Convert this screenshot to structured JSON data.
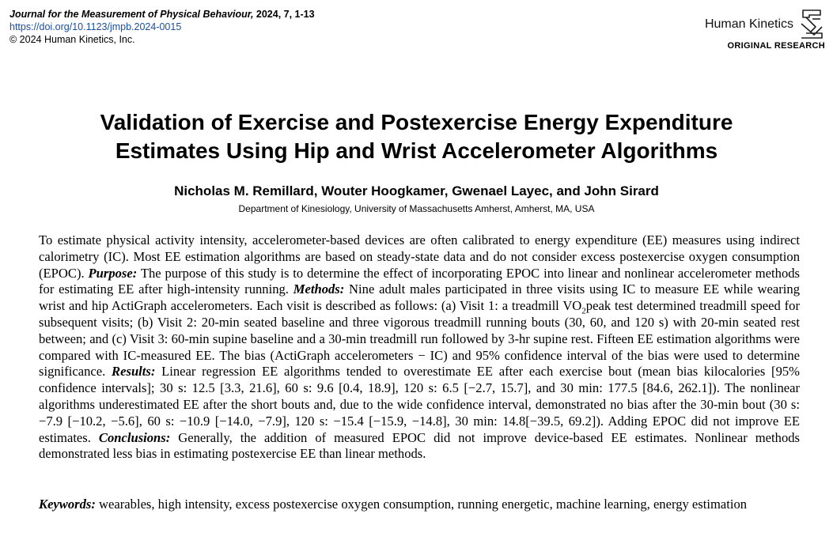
{
  "header": {
    "journal_name": "Journal for the Measurement of Physical Behaviour,",
    "journal_volume": " 2024, 7, 1-13",
    "doi": "https://doi.org/10.1123/jmpb.2024-0015",
    "copyright": "© 2024 Human Kinetics, Inc.",
    "publisher": "Human Kinetics",
    "article_type": "ORIGINAL RESEARCH"
  },
  "title": {
    "line1": "Validation of Exercise and Postexercise Energy Expenditure",
    "line2": "Estimates Using Hip and Wrist Accelerometer Algorithms"
  },
  "authors": "Nicholas M. Remillard, Wouter Hoogkamer, Gwenael Layec, and John Sirard",
  "affiliation": "Department of Kinesiology, University of Massachusetts Amherst, Amherst, MA, USA",
  "abstract": {
    "intro": "To estimate physical activity intensity, accelerometer-based devices are often calibrated to energy expenditure (EE) measures using indirect calorimetry (IC). Most EE estimation algorithms are based on steady-state data and do not consider excess postexercise oxygen consumption (EPOC). ",
    "purpose_label": "Purpose:",
    "purpose_text": " The purpose of this study is to determine the effect of incorporating EPOC into linear and nonlinear accelerometer methods for estimating EE after high-intensity running. ",
    "methods_label": "Methods:",
    "methods_text_1": " Nine adult males participated in three visits using IC to measure EE while wearing wrist and hip ActiGraph accelerometers. Each visit is described as follows: (a) Visit 1: a treadmill VO",
    "methods_sub": "2",
    "methods_text_2": "peak test determined treadmill speed for subsequent visits; (b) Visit 2: 20-min seated baseline and three vigorous treadmill running bouts (30, 60, and 120 s) with 20-min seated rest between; and (c) Visit 3: 60-min supine baseline and a 30-min treadmill run followed by 3-hr supine rest. Fifteen EE estimation algorithms were compared with IC-measured EE. The bias (ActiGraph accelerometers − IC) and 95% confidence interval of the bias were used to determine significance. ",
    "results_label": "Results:",
    "results_text": " Linear regression EE algorithms tended to overestimate EE after each exercise bout (mean bias kilocalories [95% confidence intervals]; 30 s: 12.5 [3.3, 21.6], 60 s: 9.6 [0.4, 18.9], 120 s: 6.5 [−2.7, 15.7], and 30 min: 177.5 [84.6, 262.1]). The nonlinear algorithms underestimated EE after the short bouts and, due to the wide confidence interval, demonstrated no bias after the 30-min bout (30 s: −7.9 [−10.2, −5.6], 60 s: −10.9 [−14.0, −7.9], 120 s: −15.4 [−15.9, −14.8], 30 min: 14.8[−39.5, 69.2]). Adding EPOC did not improve EE estimates. ",
    "conclusions_label": "Conclusions:",
    "conclusions_text": " Generally, the addition of measured EPOC did not improve device-based EE estimates. Nonlinear methods demonstrated less bias in estimating postexercise EE than linear methods."
  },
  "keywords": {
    "label": "Keywords:",
    "text": " wearables, high intensity, excess postexercise oxygen consumption, running energetic, machine learning, energy estimation"
  }
}
